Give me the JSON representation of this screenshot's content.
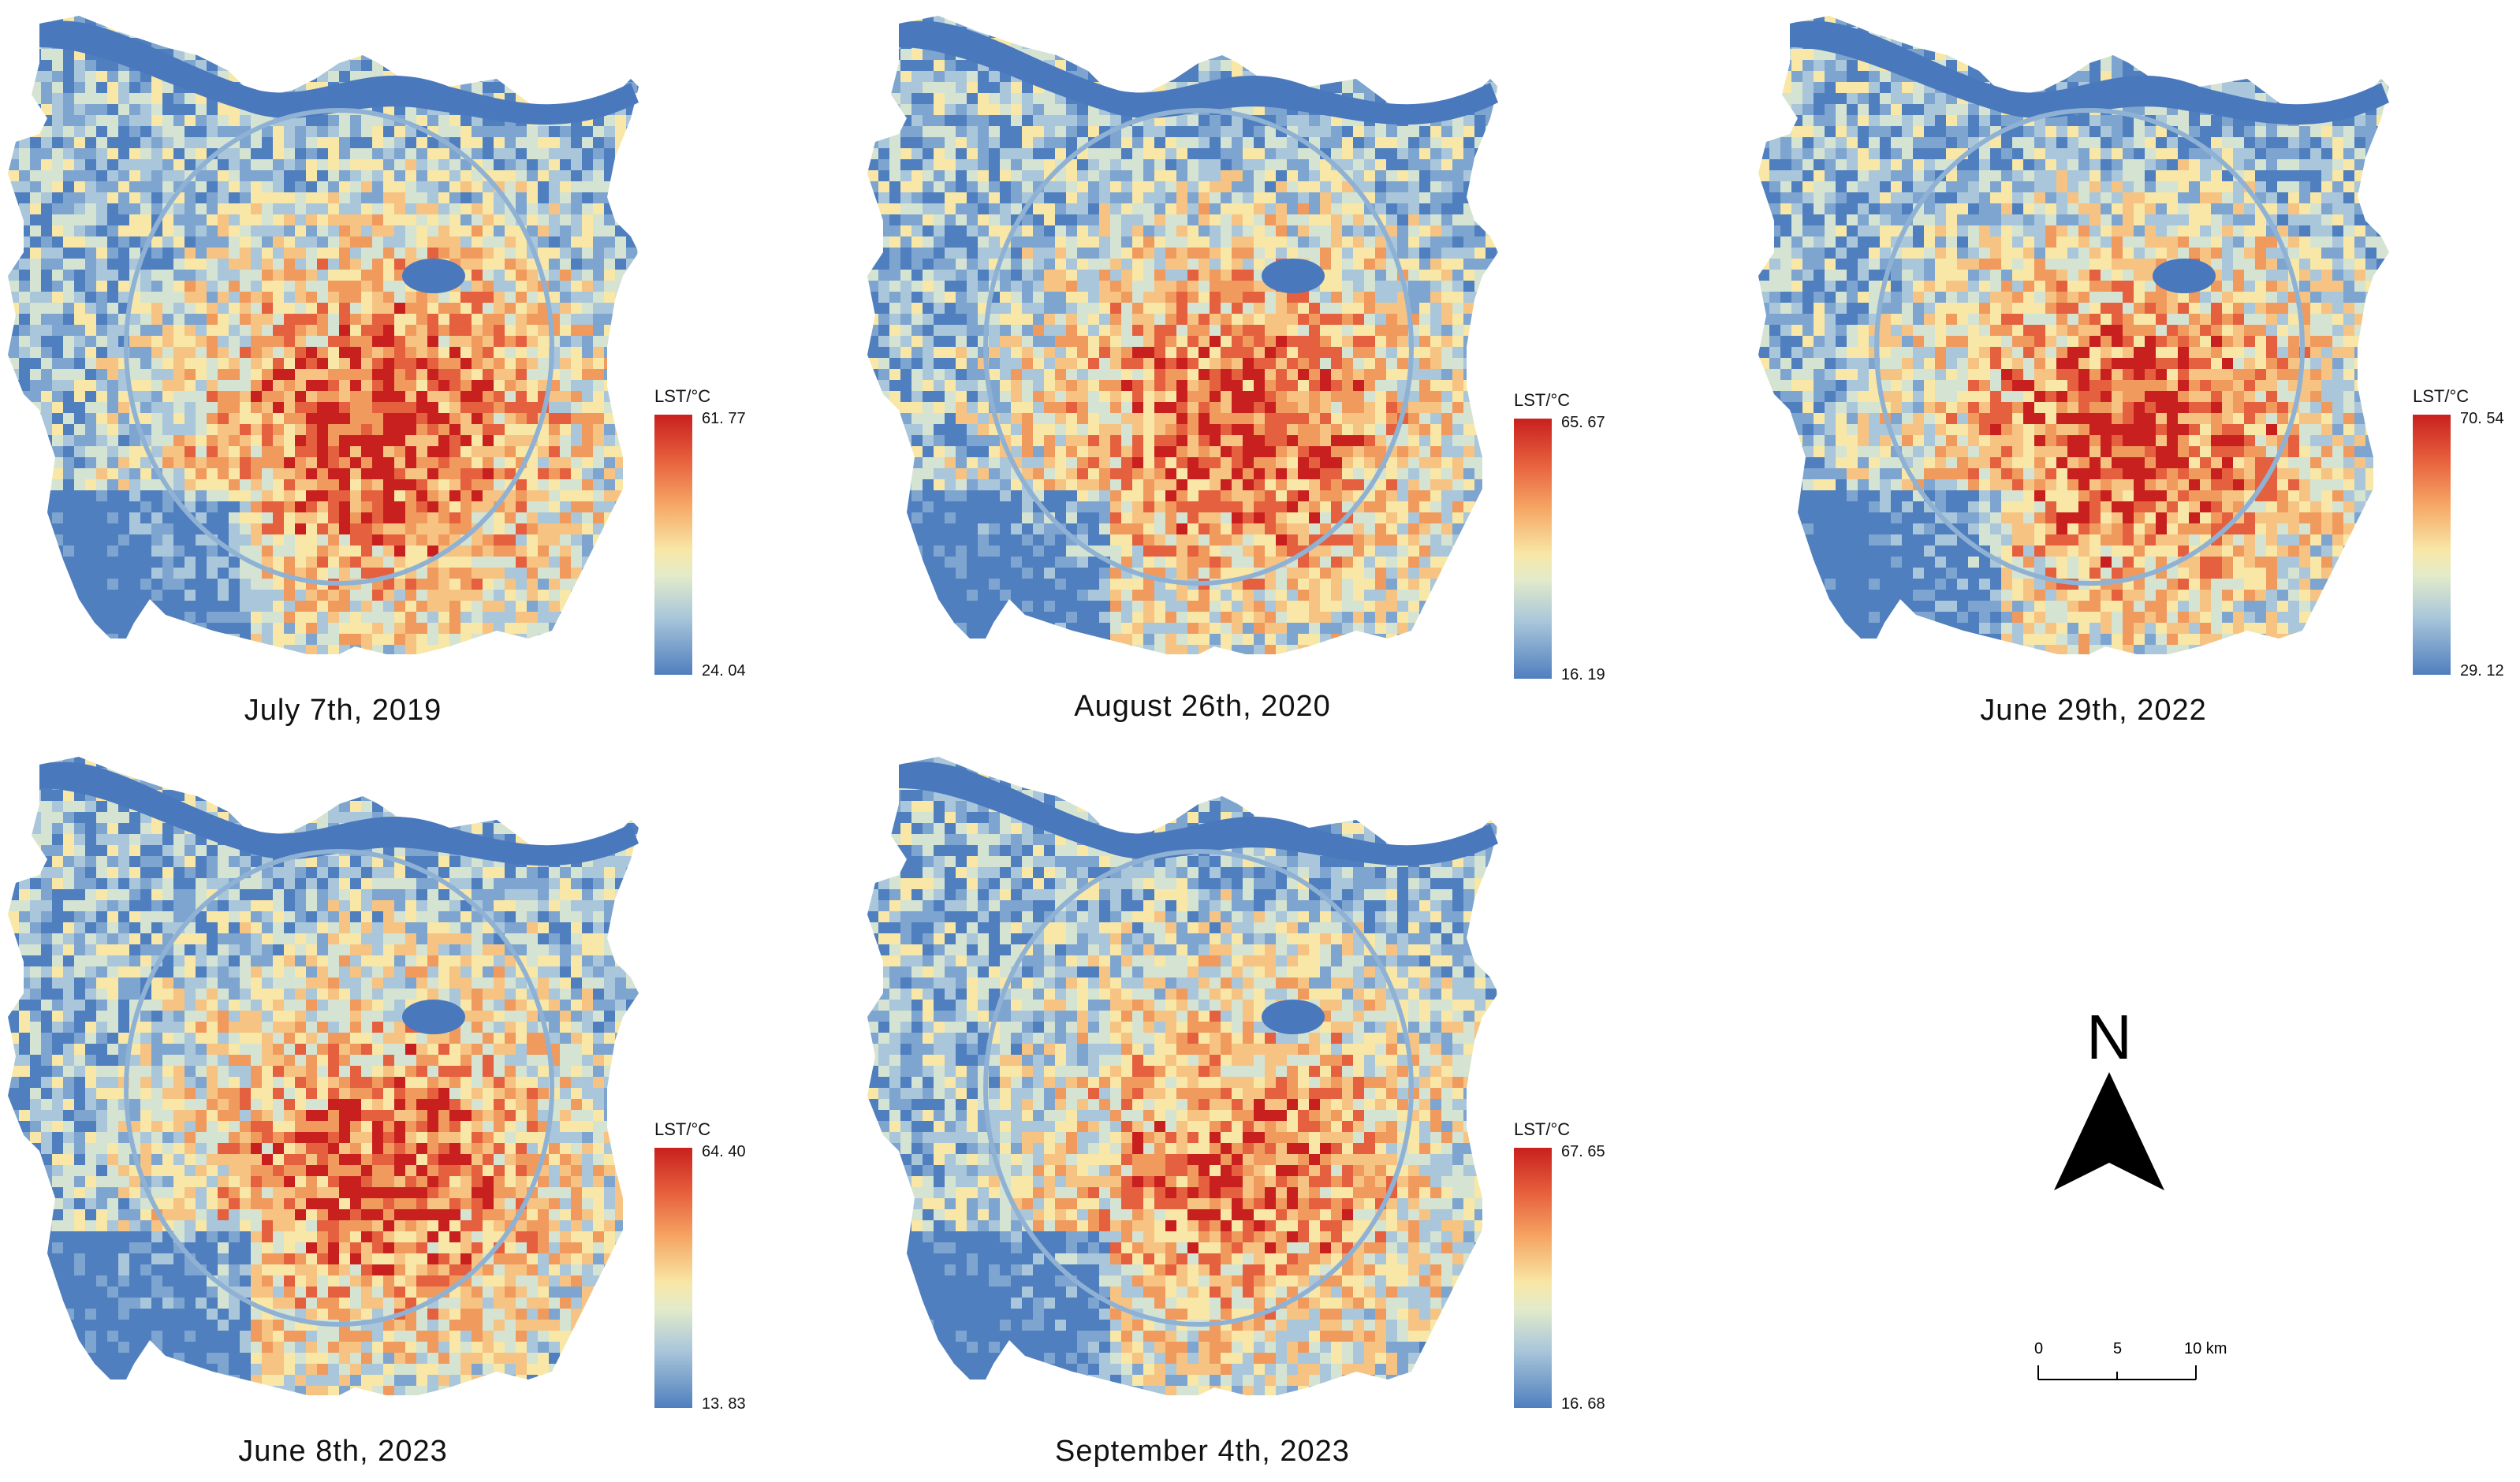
{
  "maps": [
    {
      "caption": "July 7th, 2019",
      "legend_title": "LST/°C",
      "max": "61. 77",
      "min": "24. 04",
      "heat": 0.55
    },
    {
      "caption": "August 26th, 2020",
      "legend_title": "LST/°C",
      "max": "65. 67",
      "min": "16. 19",
      "heat": 0.5
    },
    {
      "caption": "June 29th, 2022",
      "legend_title": "LST/°C",
      "max": "70. 54",
      "min": "29. 12",
      "heat": 0.55
    },
    {
      "caption": "June 8th, 2023",
      "legend_title": "LST/°C",
      "max": "64. 40",
      "min": "13. 83",
      "heat": 0.45
    },
    {
      "caption": "September 4th, 2023",
      "legend_title": "LST/°C",
      "max": "67. 65",
      "min": "16. 68",
      "heat": 0.4
    }
  ],
  "north_arrow": {
    "label": "N"
  },
  "scale_bar": {
    "ticks": [
      "0",
      "5",
      "10 km"
    ]
  },
  "colors": {
    "hot": "#c8201e",
    "warm": "#f6a866",
    "mid": "#f8e7a6",
    "cool": "#a9c6da",
    "cold": "#4f7fbf",
    "water": "#4a78bd"
  }
}
